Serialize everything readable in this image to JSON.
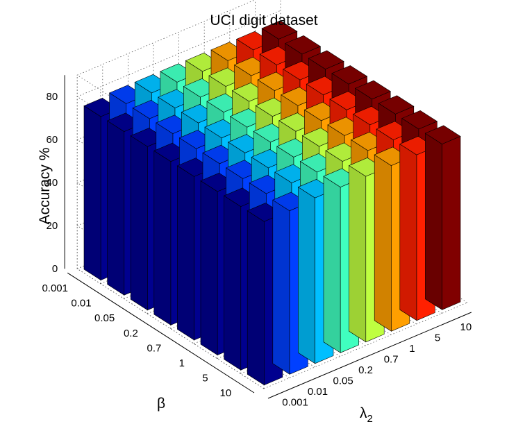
{
  "chart_data": {
    "type": "bar3d",
    "title": "UCI digit dataset",
    "zlabel": "Accuracy %",
    "xlabel": "λ",
    "xlabel_subscript": "2",
    "ylabel": "β",
    "x_categories": [
      "0.001",
      "0.01",
      "0.05",
      "0.2",
      "0.7",
      "1",
      "5",
      "10"
    ],
    "y_categories": [
      "0.001",
      "0.01",
      "0.05",
      "0.2",
      "0.7",
      "1",
      "5",
      "10"
    ],
    "zlim": [
      0,
      90
    ],
    "zticks": [
      0,
      20,
      40,
      60,
      80
    ],
    "grid": true,
    "colormap": [
      "#00008f",
      "#0040ff",
      "#00bfff",
      "#40ffbf",
      "#bfff40",
      "#ff9f00",
      "#ff2000",
      "#800000"
    ],
    "values": [
      [
        76,
        77,
        77,
        77,
        77,
        77,
        77,
        77
      ],
      [
        76,
        77,
        77,
        77,
        77,
        77,
        77,
        77
      ],
      [
        76,
        77,
        77,
        77,
        77,
        77,
        77,
        77
      ],
      [
        76,
        77,
        77,
        77,
        77,
        77,
        77,
        77
      ],
      [
        76,
        77,
        77,
        77,
        77,
        77,
        77,
        77
      ],
      [
        76,
        77,
        77,
        77,
        77,
        77,
        77,
        77
      ],
      [
        76,
        77,
        77,
        77,
        77,
        77,
        77,
        77
      ],
      [
        76,
        76,
        77,
        77,
        77,
        77,
        77,
        77
      ]
    ]
  }
}
